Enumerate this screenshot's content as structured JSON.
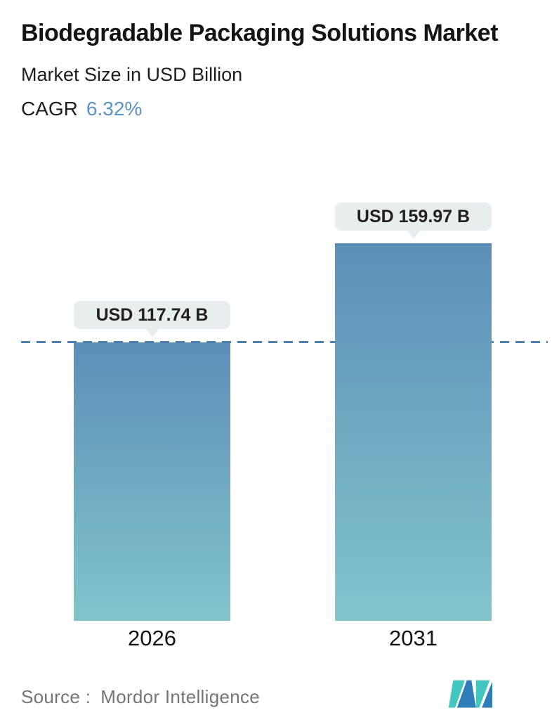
{
  "header": {
    "title": "Biodegradable Packaging Solutions Market",
    "subtitle": "Market Size in USD Billion",
    "cagr_label": "CAGR",
    "cagr_value": "6.32%"
  },
  "chart_data": {
    "type": "bar",
    "categories": [
      "2026",
      "2031"
    ],
    "values": [
      117.74,
      159.97
    ],
    "value_labels": [
      "USD 117.74 B",
      "USD 159.97 B"
    ],
    "unit": "USD Billion",
    "title": "Biodegradable Packaging Solutions Market",
    "ylabel": "Market Size in USD Billion",
    "ylim": [
      0,
      165
    ],
    "grid": false,
    "legend": false,
    "reference_line": {
      "style": "dashed",
      "at_value": 117.74,
      "color": "#4d7fa9"
    }
  },
  "bars": [
    {
      "year": "2026",
      "label": "USD 117.74 B"
    },
    {
      "year": "2031",
      "label": "USD 159.97 B"
    }
  ],
  "footer": {
    "source_label": "Source :",
    "source_value": "Mordor Intelligence",
    "logo_name": "mordor-intelligence-logo"
  },
  "colors": {
    "bar_gradient_top": "#5b8fb9",
    "bar_gradient_bottom": "#82c4cb",
    "dashed_line": "#4d7fa9",
    "cagr_accent": "#5b93c7",
    "callout_bg": "#e8eef0",
    "callout_text": "#212121",
    "source_text": "#757575",
    "logo_teal": "#43c6c0",
    "logo_blue": "#2e7cb8"
  }
}
